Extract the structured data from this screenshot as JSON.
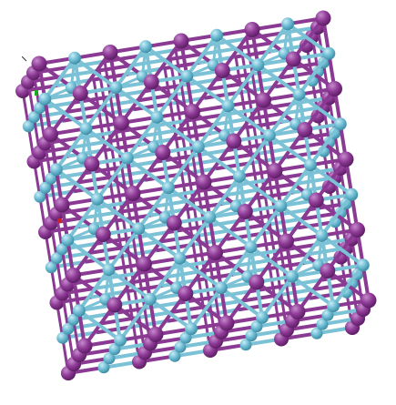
{
  "viewer": {
    "background": "#ffffff",
    "colors": {
      "atom_a": "#8e3a96",
      "atom_a_shadow": "#5e1f66",
      "atom_a_highlight": "#c58bcc",
      "atom_b": "#6cbcd3",
      "atom_b_shadow": "#3f8ea6",
      "atom_b_highlight": "#c9ecf5",
      "bond_a": "#8a3a93",
      "bond_b": "#7cc2d6",
      "axis_x": "#cc2222",
      "axis_y": "#22aa22"
    },
    "structure": {
      "description_visible": "",
      "layers_behind": 3,
      "grid_cells": 4
    },
    "icons": [
      "atom-sphere-icon",
      "bond-stick-icon",
      "axis-indicator-icon"
    ]
  }
}
